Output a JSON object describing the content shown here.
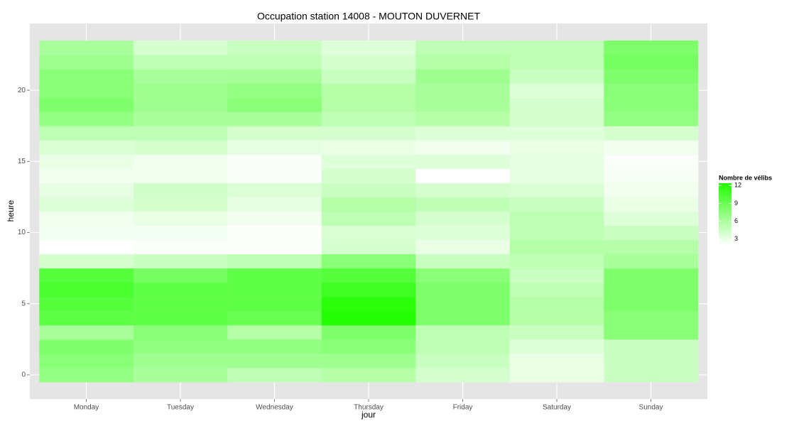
{
  "chart_data": {
    "type": "heatmap",
    "title": "Occupation station 14008 - MOUTON DUVERNET",
    "x_label": "jour",
    "y_label": "heure",
    "categories": [
      "Monday",
      "Tuesday",
      "Wednesday",
      "Thursday",
      "Friday",
      "Saturday",
      "Sunday"
    ],
    "hours": [
      0,
      1,
      2,
      3,
      4,
      5,
      6,
      7,
      8,
      9,
      10,
      11,
      12,
      13,
      14,
      15,
      16,
      17,
      18,
      19,
      20,
      21,
      22,
      23
    ],
    "values": [
      [
        7,
        7.5,
        8,
        6,
        9.5,
        10,
        10.5,
        10,
        4,
        2,
        2.5,
        2.7,
        3.5,
        3.2,
        2.6,
        3,
        3.7,
        5,
        7,
        8,
        7.5,
        7.5,
        6.5,
        6
      ],
      [
        6,
        6.5,
        7.2,
        7.5,
        9.5,
        9.5,
        9.5,
        8.5,
        4.5,
        2.2,
        2.5,
        3,
        4,
        4.2,
        2.6,
        2.7,
        4,
        5,
        6,
        6.5,
        6.5,
        6,
        5,
        4
      ],
      [
        5,
        6.5,
        7.2,
        5.5,
        9,
        9.5,
        9.5,
        9.5,
        5,
        2.1,
        2.1,
        2.6,
        3.2,
        3.6,
        2.3,
        2.3,
        3.2,
        4,
        6,
        7.5,
        7,
        6.2,
        5,
        4.5
      ],
      [
        5.5,
        6.5,
        7.5,
        8,
        12.3,
        12,
        11,
        10,
        7.5,
        4,
        3.8,
        5,
        5.5,
        4.5,
        4,
        3.5,
        3,
        4,
        5,
        5.5,
        5.5,
        4.5,
        4,
        3.5
      ],
      [
        4,
        4.5,
        5,
        5,
        8,
        8,
        8,
        7.5,
        4.5,
        3,
        3.5,
        4,
        5,
        4,
        2,
        3.5,
        2.7,
        3.5,
        5.5,
        6,
        6,
        6.5,
        5.5,
        5
      ],
      [
        3,
        3,
        3.5,
        4.5,
        5.5,
        5.5,
        5,
        4.5,
        5,
        5.5,
        5,
        5,
        4.5,
        3.8,
        3.2,
        3.2,
        3,
        3.5,
        4,
        4,
        3.5,
        4.5,
        5,
        5
      ],
      [
        4.5,
        4.5,
        4.5,
        7.5,
        7.5,
        8,
        8,
        8,
        6,
        5.5,
        4.5,
        3.5,
        3,
        2.7,
        2.4,
        2.2,
        2.7,
        4,
        7,
        7.5,
        7.5,
        8,
        8.5,
        8
      ]
    ],
    "ylim": [
      -1.7,
      24.7
    ],
    "yticks": [
      0,
      5,
      10,
      15,
      20
    ],
    "grid": true,
    "colors": [
      "#ffffff",
      "#22ff00"
    ],
    "colorlim": [
      2,
      12.4
    ],
    "legend": {
      "title": "Nombre de vélibs",
      "ticks": [
        3,
        6,
        9,
        12
      ],
      "position": "right"
    }
  }
}
